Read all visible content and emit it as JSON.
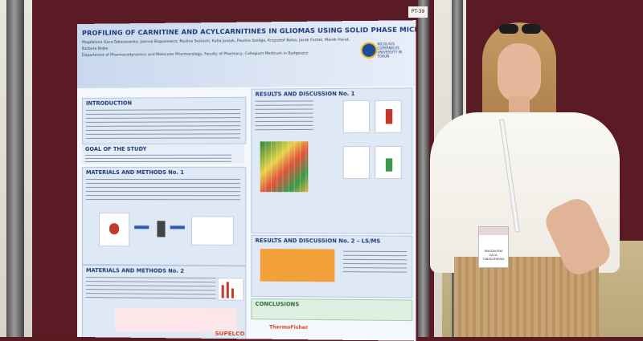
{
  "poster": {
    "title": "PROFILING OF CARNITINE AND ACYLCARNITINES IN GLIOMAS USING SOLID PHASE MICROEXTRACTION (SPME) – EXTENDED STUDIES",
    "authors": "Magdalena Gaca-Tabaszewska, Joanna Bogusiewicz, Paulina Sośnicki, Katia Juszyk, Paulina Szeliga, Krzysztof Bełza, Jacek Furtak, Marek Harat, Barbara Bojko",
    "affiliation": "Department of Pharmacodynamics and Molecular Pharmacology, Faculty of Pharmacy, Collegium Medicum in Bydgoszcz",
    "university": "NICOLAUS COPERNICUS UNIVERSITY IN TORUŃ",
    "sections": {
      "introduction": "INTRODUCTION",
      "goal": "GOAL OF THE STUDY",
      "methods1": "MATERIALS AND METHODS No. 1",
      "methods2": "MATERIALS AND METHODS No. 2",
      "results1": "RESULTS AND DISCUSSION No. 1",
      "results2": "RESULTS AND DISCUSSION No. 2 – LS/MS",
      "conclusions": "CONCLUSIONS"
    },
    "sponsor": "SUPELCO",
    "sponsor2": "ThermoFisher"
  },
  "board_tag": "PT-39",
  "badge": {
    "name": "MAGDALENA GACA-TABASZEWSKA"
  },
  "colors": {
    "board": "#5b1b25",
    "poster_title": "#1e3d7a"
  }
}
